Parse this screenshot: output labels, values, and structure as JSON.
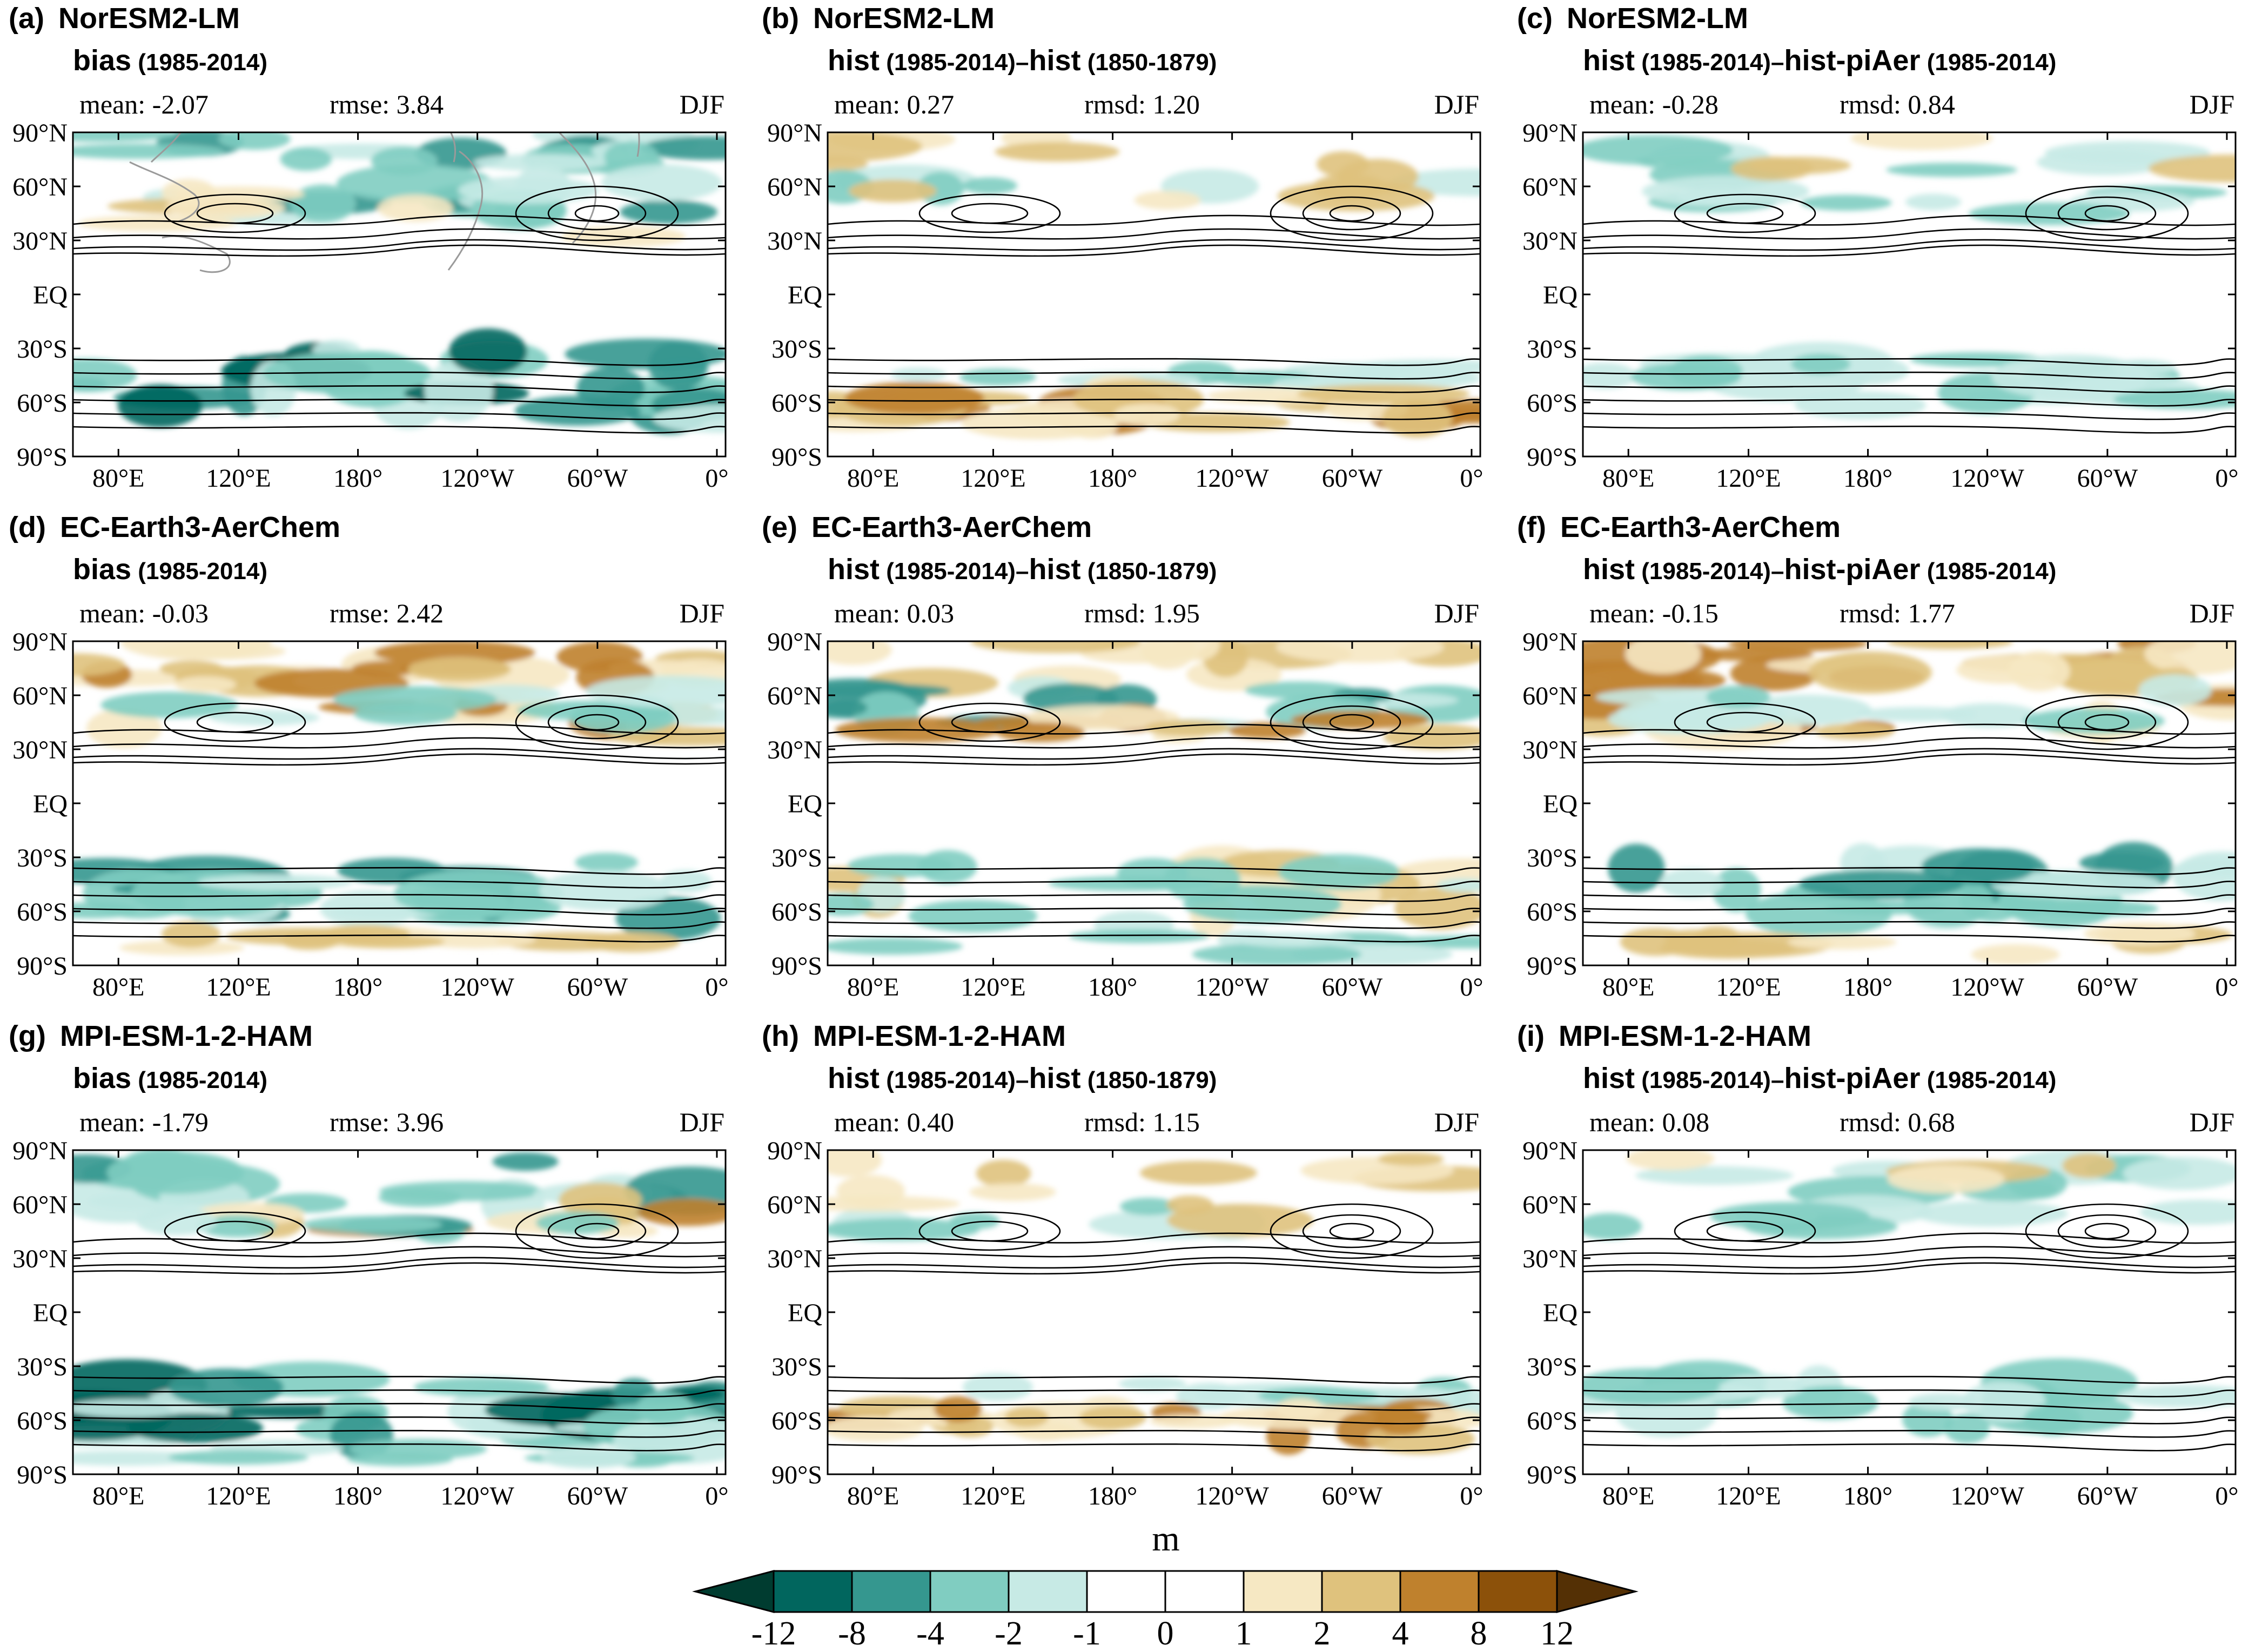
{
  "season": "DJF",
  "tick_labels": {
    "lat": [
      "90°N",
      "60°N",
      "30°N",
      "EQ",
      "30°S",
      "60°S",
      "90°S"
    ],
    "lon": [
      "80°E",
      "120°E",
      "180°",
      "120°W",
      "60°W",
      "0°"
    ]
  },
  "panels": [
    {
      "tag": "(a)",
      "model": "NorESM2-LM",
      "line2": [
        {
          "t": "bias",
          "b": true
        },
        {
          "t": " (1985-2014)",
          "b": false
        }
      ],
      "stat_mean": "mean: -2.07",
      "stat_err": "rmse: 3.84",
      "variant": "bias",
      "seed": 11
    },
    {
      "tag": "(b)",
      "model": "NorESM2-LM",
      "line2": [
        {
          "t": "hist",
          "b": true
        },
        {
          "t": " (1985-2014)",
          "b": false
        },
        {
          "t": "–",
          "b": false
        },
        {
          "t": "hist",
          "b": true
        },
        {
          "t": " (1850-1879)",
          "b": false
        }
      ],
      "stat_mean": "mean: 0.27",
      "stat_err": "rmsd: 1.20",
      "variant": "hist",
      "seed": 22
    },
    {
      "tag": "(c)",
      "model": "NorESM2-LM",
      "line2": [
        {
          "t": "hist",
          "b": true
        },
        {
          "t": " (1985-2014)",
          "b": false
        },
        {
          "t": "–",
          "b": false
        },
        {
          "t": "hist-piAer",
          "b": true
        },
        {
          "t": " (1985-2014)",
          "b": false
        }
      ],
      "stat_mean": "mean: -0.28",
      "stat_err": "rmsd: 0.84",
      "variant": "aer",
      "seed": 33
    },
    {
      "tag": "(d)",
      "model": "EC-Earth3-AerChem",
      "line2": [
        {
          "t": "bias",
          "b": true
        },
        {
          "t": " (1985-2014)",
          "b": false
        }
      ],
      "stat_mean": "mean: -0.03",
      "stat_err": "rmse: 2.42",
      "variant": "bias2",
      "seed": 44
    },
    {
      "tag": "(e)",
      "model": "EC-Earth3-AerChem",
      "line2": [
        {
          "t": "hist",
          "b": true
        },
        {
          "t": " (1985-2014)",
          "b": false
        },
        {
          "t": "–",
          "b": false
        },
        {
          "t": "hist",
          "b": true
        },
        {
          "t": " (1850-1879)",
          "b": false
        }
      ],
      "stat_mean": "mean: 0.03",
      "stat_err": "rmsd: 1.95",
      "variant": "mixed",
      "seed": 55
    },
    {
      "tag": "(f)",
      "model": "EC-Earth3-AerChem",
      "line2": [
        {
          "t": "hist",
          "b": true
        },
        {
          "t": " (1985-2014)",
          "b": false
        },
        {
          "t": "–",
          "b": false
        },
        {
          "t": "hist-piAer",
          "b": true
        },
        {
          "t": " (1985-2014)",
          "b": false
        }
      ],
      "stat_mean": "mean: -0.15",
      "stat_err": "rmsd: 1.77",
      "variant": "bias2",
      "seed": 66
    },
    {
      "tag": "(g)",
      "model": "MPI-ESM-1-2-HAM",
      "line2": [
        {
          "t": "bias",
          "b": true
        },
        {
          "t": " (1985-2014)",
          "b": false
        }
      ],
      "stat_mean": "mean: -1.79",
      "stat_err": "rmse: 3.96",
      "variant": "bias3",
      "seed": 77
    },
    {
      "tag": "(h)",
      "model": "MPI-ESM-1-2-HAM",
      "line2": [
        {
          "t": "hist",
          "b": true
        },
        {
          "t": " (1985-2014)",
          "b": false
        },
        {
          "t": "–",
          "b": false
        },
        {
          "t": "hist",
          "b": true
        },
        {
          "t": " (1850-1879)",
          "b": false
        }
      ],
      "stat_mean": "mean: 0.40",
      "stat_err": "rmsd: 1.15",
      "variant": "hist",
      "seed": 88
    },
    {
      "tag": "(i)",
      "model": "MPI-ESM-1-2-HAM",
      "line2": [
        {
          "t": "hist",
          "b": true
        },
        {
          "t": " (1985-2014)",
          "b": false
        },
        {
          "t": "–",
          "b": false
        },
        {
          "t": "hist-piAer",
          "b": true
        },
        {
          "t": " (1985-2014)",
          "b": false
        }
      ],
      "stat_mean": "mean: 0.08",
      "stat_err": "rmsd: 0.68",
      "variant": "aer",
      "seed": 99
    }
  ],
  "colorbar": {
    "unit": "m",
    "labels": [
      "-12",
      "-8",
      "-4",
      "-2",
      "-1",
      "0",
      "1",
      "2",
      "4",
      "8",
      "12"
    ],
    "colors": [
      "#01665e",
      "#35978f",
      "#80cdc1",
      "#c7eae5",
      "#ffffff",
      "#ffffff",
      "#f6e8c3",
      "#dfc27d",
      "#bf812d",
      "#8c510a"
    ],
    "low_end_color": "#003c30",
    "high_end_color": "#543005"
  }
}
